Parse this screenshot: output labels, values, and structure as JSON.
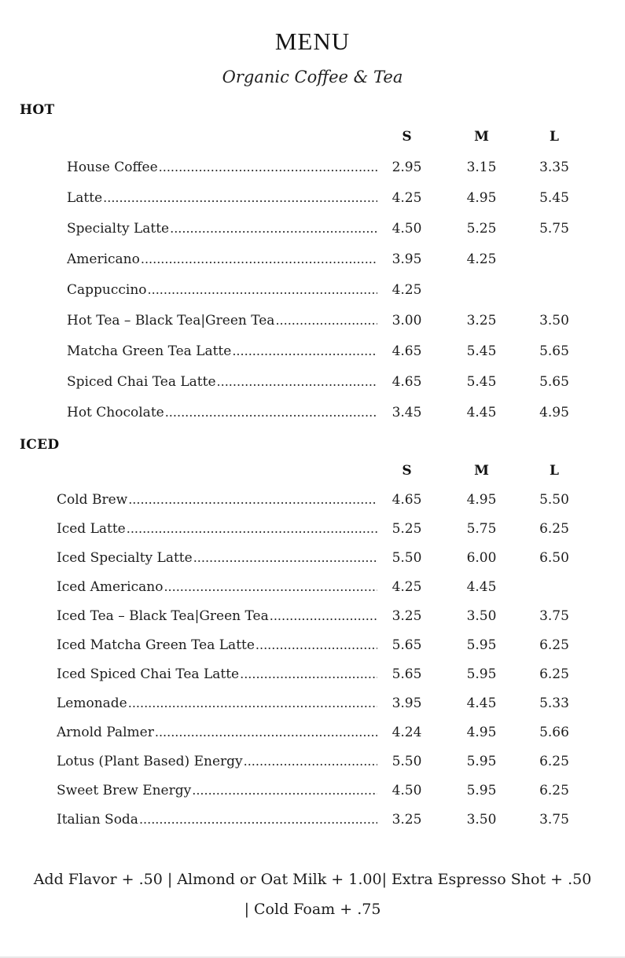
{
  "page": {
    "title": "MENU",
    "subtitle": "Organic Coffee & Tea"
  },
  "size_headers": [
    "S",
    "M",
    "L"
  ],
  "sections": [
    {
      "name": "HOT",
      "items": [
        {
          "label": "House Coffee",
          "s": "2.95",
          "m": "3.15",
          "l": "3.35"
        },
        {
          "label": "Latte",
          "s": "4.25",
          "m": "4.95",
          "l": "5.45"
        },
        {
          "label": "Specialty Latte",
          "s": "4.50",
          "m": "5.25",
          "l": "5.75"
        },
        {
          "label": "Americano",
          "s": "3.95",
          "m": "4.25",
          "l": ""
        },
        {
          "label": "Cappuccino",
          "s": "4.25",
          "m": "",
          "l": ""
        },
        {
          "label": "Hot Tea – Black Tea|Green Tea",
          "s": "3.00",
          "m": "3.25",
          "l": "3.50"
        },
        {
          "label": "Matcha Green Tea Latte",
          "s": "4.65",
          "m": "5.45",
          "l": "5.65"
        },
        {
          "label": "Spiced Chai Tea Latte",
          "s": "4.65",
          "m": "5.45",
          "l": "5.65"
        },
        {
          "label": "Hot Chocolate",
          "s": "3.45",
          "m": "4.45",
          "l": "4.95"
        }
      ]
    },
    {
      "name": "ICED",
      "items": [
        {
          "label": "Cold Brew",
          "s": "4.65",
          "m": "4.95",
          "l": "5.50"
        },
        {
          "label": "Iced Latte",
          "s": "5.25",
          "m": "5.75",
          "l": "6.25"
        },
        {
          "label": "Iced Specialty Latte",
          "s": "5.50",
          "m": "6.00",
          "l": "6.50"
        },
        {
          "label": "Iced Americano",
          "s": "4.25",
          "m": "4.45",
          "l": ""
        },
        {
          "label": "Iced Tea – Black Tea|Green Tea",
          "s": "3.25",
          "m": "3.50",
          "l": "3.75"
        },
        {
          "label": "Iced Matcha Green Tea Latte",
          "s": "5.65",
          "m": "5.95",
          "l": "6.25"
        },
        {
          "label": "Iced Spiced Chai Tea Latte",
          "s": "5.65",
          "m": "5.95",
          "l": "6.25"
        },
        {
          "label": "Lemonade",
          "s": "3.95",
          "m": "4.45",
          "l": "5.33"
        },
        {
          "label": "Arnold Palmer",
          "s": "4.24",
          "m": "4.95",
          "l": "5.66"
        },
        {
          "label": "Lotus (Plant Based) Energy",
          "s": "5.50",
          "m": "5.95",
          "l": "6.25"
        },
        {
          "label": "Sweet Brew Energy",
          "s": "4.50",
          "m": "5.95",
          "l": "6.25"
        },
        {
          "label": "Italian Soda",
          "s": "3.25",
          "m": "3.50",
          "l": "3.75"
        }
      ]
    }
  ],
  "footer": {
    "line1": "Add Flavor + .50 | Almond or Oat Milk + 1.00| Extra Espresso Shot + .50",
    "line2": "| Cold Foam + .75"
  }
}
